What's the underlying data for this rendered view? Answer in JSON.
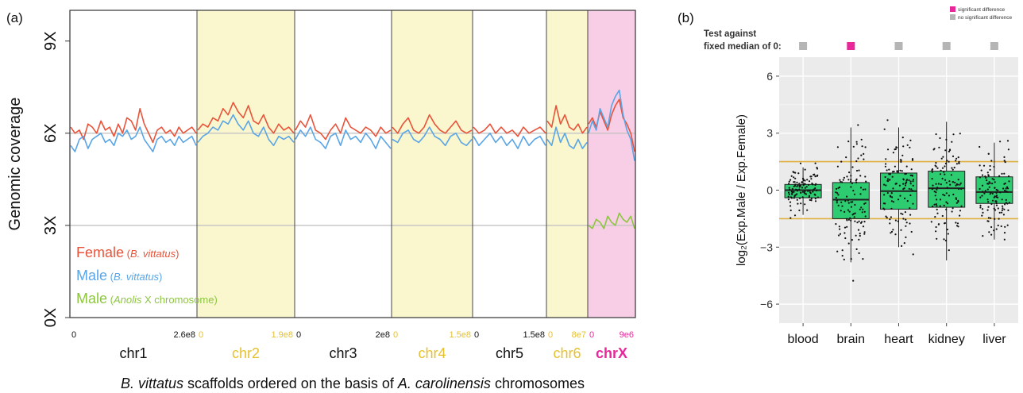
{
  "colors": {
    "female": "#e8533a",
    "male": "#5aa5e6",
    "male_anolis": "#8cc63e",
    "autosome_band": "#faf7cf",
    "chrX_band": "#f8cde6",
    "chrX_label": "#e8279b",
    "yellow_label": "#e6c12f",
    "box_fill": "#2ecc71",
    "panel_bg": "#ebebeb",
    "threshold_line": "#e0b040",
    "significant": "#e8279b",
    "not_significant": "#b5b5b5"
  },
  "chart_data": [
    {
      "type": "line",
      "panel_label": "(a)",
      "xlabel_parts": [
        {
          "text": "B. vittatus",
          "italic": true
        },
        {
          "text": " scaffolds ordered on the basis of ",
          "italic": false
        },
        {
          "text": "A. carolinensis",
          "italic": true
        },
        {
          "text": " chromosomes",
          "italic": false
        }
      ],
      "ylabel": "Genomic coverage",
      "ylim": [
        0,
        10
      ],
      "y_ticks": [
        {
          "value": 0,
          "label": "0X"
        },
        {
          "value": 3,
          "label": "3X"
        },
        {
          "value": 6,
          "label": "6X"
        },
        {
          "value": 9,
          "label": "9X"
        }
      ],
      "reference_lines": [
        3,
        6
      ],
      "chromosomes": [
        {
          "name": "chr1",
          "start": "0",
          "end": "2.6e8",
          "band": "none",
          "label_color": "black"
        },
        {
          "name": "chr2",
          "start": "0",
          "end": "1.9e8",
          "band": "yellow",
          "label_color": "yellow"
        },
        {
          "name": "chr3",
          "start": "0",
          "end": "2e8",
          "band": "none",
          "label_color": "black"
        },
        {
          "name": "chr4",
          "start": "0",
          "end": "1.5e8",
          "band": "yellow",
          "label_color": "yellow"
        },
        {
          "name": "chr5",
          "start": "0",
          "end": "1.5e8",
          "band": "none",
          "label_color": "black"
        },
        {
          "name": "chr6",
          "start": "0",
          "end": "8e7",
          "band": "yellow",
          "label_color": "yellow"
        },
        {
          "name": "chrX",
          "start": "0",
          "end": "9e6",
          "band": "pink",
          "label_color": "pink"
        }
      ],
      "legend": [
        {
          "name": "Female",
          "sub": "B. vittatus",
          "color_key": "female"
        },
        {
          "name": "Male",
          "sub": "B. vittatus",
          "color_key": "male"
        },
        {
          "name": "Male",
          "sub_prefix": "Anolis",
          "sub_suffix": " X chromosome",
          "color_key": "male_anolis"
        }
      ],
      "series": [
        {
          "name": "Female",
          "color_key": "female",
          "segments": [
            [
              6.2,
              6.0,
              6.1,
              5.8,
              6.3,
              6.2,
              6.0,
              6.4,
              6.1,
              6.2,
              5.9,
              6.3,
              6.0,
              6.5,
              6.4,
              6.1,
              6.8,
              6.3,
              6.0,
              5.7,
              6.1,
              6.2,
              6.0,
              6.1,
              5.9,
              6.2,
              6.0,
              6.1,
              6.2,
              6.0
            ],
            [
              6.1,
              6.3,
              6.2,
              6.5,
              6.4,
              6.8,
              6.6,
              7.0,
              6.7,
              6.5,
              6.9,
              6.4,
              6.3,
              6.6,
              6.2,
              6.0,
              6.3,
              6.1,
              6.2,
              6.0
            ],
            [
              6.1,
              6.4,
              6.2,
              6.6,
              6.1,
              6.0,
              5.8,
              6.1,
              6.3,
              6.0,
              6.5,
              6.2,
              6.1,
              6.0,
              6.2,
              6.1,
              5.9,
              6.2,
              6.0,
              6.1
            ],
            [
              6.2,
              6.0,
              6.3,
              6.5,
              6.1,
              6.0,
              6.2,
              6.6,
              6.3,
              6.1,
              6.0,
              6.2,
              6.4,
              6.1,
              6.0,
              6.1
            ],
            [
              6.2,
              6.0,
              6.1,
              6.3,
              6.0,
              6.2,
              6.0,
              6.1,
              5.9,
              6.2,
              6.0,
              6.1,
              6.2,
              6.0
            ],
            [
              6.4,
              6.2,
              6.9,
              6.3,
              6.6,
              6.2,
              6.1,
              6.3,
              6.0,
              6.2
            ],
            [
              6.3,
              6.5,
              6.2,
              6.7,
              6.4,
              6.1,
              6.6,
              6.9,
              7.1,
              6.5,
              6.3,
              6.0,
              5.4
            ]
          ]
        },
        {
          "name": "Male",
          "color_key": "male",
          "segments": [
            [
              5.6,
              5.4,
              5.8,
              5.9,
              5.5,
              5.8,
              5.9,
              6.0,
              5.7,
              5.8,
              5.6,
              6.0,
              5.9,
              6.1,
              5.8,
              5.9,
              6.2,
              5.8,
              5.6,
              5.4,
              5.8,
              5.9,
              5.7,
              5.8,
              5.6,
              5.9,
              5.7,
              5.8,
              5.9,
              5.6
            ],
            [
              5.7,
              5.9,
              6.0,
              6.2,
              6.1,
              6.4,
              6.3,
              6.6,
              6.3,
              6.1,
              6.4,
              6.0,
              5.9,
              6.2,
              5.8,
              5.6,
              5.9,
              5.8,
              5.9,
              5.7
            ],
            [
              5.8,
              6.1,
              5.9,
              6.2,
              5.8,
              5.7,
              5.5,
              5.9,
              6.0,
              5.6,
              6.1,
              5.8,
              5.9,
              5.7,
              6.0,
              5.8,
              5.5,
              5.9,
              5.7,
              5.5
            ],
            [
              5.8,
              5.7,
              6.0,
              6.1,
              5.8,
              5.7,
              5.9,
              6.2,
              5.9,
              5.8,
              5.6,
              5.9,
              6.0,
              5.7,
              5.6,
              5.8
            ],
            [
              5.9,
              5.6,
              5.8,
              6.0,
              5.7,
              5.9,
              5.6,
              5.8,
              5.5,
              5.9,
              5.6,
              5.8,
              5.9,
              5.6
            ],
            [
              5.8,
              5.6,
              6.2,
              5.7,
              6.0,
              5.6,
              5.5,
              5.8,
              5.5,
              5.7
            ],
            [
              6.0,
              6.4,
              6.1,
              6.8,
              6.5,
              6.2,
              6.9,
              7.2,
              7.4,
              6.6,
              6.1,
              5.8,
              5.1
            ]
          ]
        },
        {
          "name": "Male (Anolis X chromosome)",
          "color_key": "male_anolis",
          "segments": [
            [],
            [],
            [],
            [],
            [],
            [],
            [
              3.0,
              2.9,
              3.2,
              3.1,
              2.9,
              3.3,
              3.1,
              3.0,
              3.4,
              3.2,
              3.1,
              3.3,
              2.9
            ]
          ]
        }
      ]
    },
    {
      "type": "box",
      "panel_label": "(b)",
      "ylabel": "log₂(Exp.Male / Exp.Female)",
      "ylim": [
        -7,
        7
      ],
      "y_ticks": [
        -6,
        -3,
        0,
        3,
        6
      ],
      "y_tick_labels": [
        "−6",
        "−3",
        "0",
        "3",
        "6"
      ],
      "threshold_lines": [
        -1.5,
        1.5
      ],
      "categories": [
        "blood",
        "brain",
        "heart",
        "kidney",
        "liver"
      ],
      "boxes": [
        {
          "q1": -0.4,
          "median": 0.0,
          "q3": 0.3,
          "whisker_low": -1.3,
          "whisker_high": 1.2,
          "significant": false
        },
        {
          "q1": -1.5,
          "median": -0.5,
          "q3": 0.4,
          "whisker_low": -3.8,
          "whisker_high": 3.3,
          "significant": true
        },
        {
          "q1": -1.0,
          "median": -0.05,
          "q3": 0.9,
          "whisker_low": -3.0,
          "whisker_high": 3.3,
          "significant": false
        },
        {
          "q1": -0.9,
          "median": 0.1,
          "q3": 1.0,
          "whisker_low": -3.7,
          "whisker_high": 3.6,
          "significant": false
        },
        {
          "q1": -0.7,
          "median": -0.1,
          "q3": 0.7,
          "whisker_low": -2.6,
          "whisker_high": 2.5,
          "significant": false
        }
      ],
      "test_label_line1": "Test against",
      "test_label_line2": "fixed median of 0:",
      "legend": [
        {
          "label": "significant difference",
          "color_key": "significant"
        },
        {
          "label": "no significant difference",
          "color_key": "not_significant"
        }
      ]
    }
  ]
}
